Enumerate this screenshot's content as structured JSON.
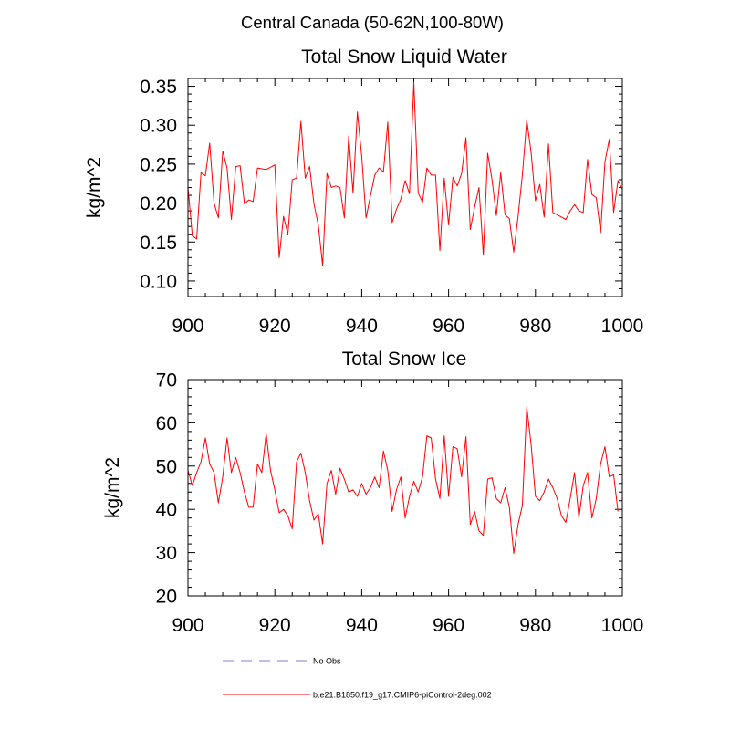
{
  "figure": {
    "title": "Central Canada (50-62N,100-80W)"
  },
  "legend": {
    "placement": "bottom",
    "entries": [
      {
        "label": "No Obs",
        "color": "#9999dd",
        "style": "dashed"
      },
      {
        "label": "b.e21.B1850.f19_g17.CMIP6-piControl-2deg.002",
        "color": "#ff0000",
        "style": "solid"
      }
    ]
  },
  "chart_data": [
    {
      "type": "line",
      "title": "Total Snow Liquid Water",
      "xlabel": "",
      "ylabel": "kg/m^2",
      "xlim": [
        900,
        1000
      ],
      "ylim": [
        0.08,
        0.36
      ],
      "xticks": [
        "900",
        "920",
        "940",
        "960",
        "980",
        "1000"
      ],
      "yticks": [
        "0.10",
        "0.15",
        "0.20",
        "0.25",
        "0.30",
        "0.35"
      ],
      "x_start": 900,
      "x_step": 1,
      "series": [
        {
          "name": "b.e21.B1850.f19_g17.CMIP6-piControl-2deg.002",
          "color": "#ff0000",
          "values": [
            0.22,
            0.158,
            0.154,
            0.239,
            0.235,
            0.277,
            0.2,
            0.181,
            0.267,
            0.245,
            0.179,
            0.247,
            0.248,
            0.199,
            0.204,
            0.202,
            0.245,
            0.244,
            0.243,
            0.246,
            0.249,
            0.13,
            0.183,
            0.16,
            0.23,
            0.232,
            0.305,
            0.232,
            0.247,
            0.199,
            0.172,
            0.12,
            0.238,
            0.22,
            0.222,
            0.22,
            0.181,
            0.286,
            0.213,
            0.317,
            0.26,
            0.181,
            0.209,
            0.236,
            0.245,
            0.24,
            0.304,
            0.175,
            0.192,
            0.205,
            0.229,
            0.212,
            0.355,
            0.213,
            0.201,
            0.245,
            0.236,
            0.236,
            0.139,
            0.232,
            0.172,
            0.233,
            0.222,
            0.238,
            0.284,
            0.166,
            0.195,
            0.22,
            0.133,
            0.264,
            0.23,
            0.184,
            0.239,
            0.185,
            0.18,
            0.137,
            0.183,
            0.237,
            0.307,
            0.265,
            0.203,
            0.224,
            0.182,
            0.276,
            0.188,
            0.185,
            0.182,
            0.179,
            0.19,
            0.198,
            0.19,
            0.188,
            0.256,
            0.211,
            0.207,
            0.162,
            0.253,
            0.282,
            0.188,
            0.229,
            0.218
          ]
        }
      ]
    },
    {
      "type": "line",
      "title": "Total Snow Ice",
      "xlabel": "",
      "ylabel": "kg/m^2",
      "xlim": [
        900,
        1000
      ],
      "ylim": [
        20,
        70
      ],
      "xticks": [
        "900",
        "920",
        "940",
        "960",
        "980",
        "1000"
      ],
      "yticks": [
        "20",
        "30",
        "40",
        "50",
        "60",
        "70"
      ],
      "x_start": 900,
      "x_step": 1,
      "series": [
        {
          "name": "b.e21.B1850.f19_g17.CMIP6-piControl-2deg.002",
          "color": "#ff0000",
          "values": [
            49,
            45.5,
            48.5,
            51,
            56.5,
            50.5,
            48.5,
            41.5,
            47.5,
            56.5,
            48.5,
            52,
            48.5,
            44,
            40.5,
            40.5,
            50.5,
            48.5,
            57.5,
            49,
            44.5,
            39.2,
            40,
            38.5,
            35.5,
            51,
            53,
            48.5,
            42,
            37.5,
            39,
            32,
            46,
            49,
            43.5,
            49.5,
            47,
            44,
            44.5,
            43,
            46,
            43.5,
            45,
            47.5,
            45,
            53.5,
            49,
            39.5,
            44.5,
            47.5,
            38,
            43,
            46.5,
            44,
            47.5,
            57,
            56.5,
            47,
            42.5,
            57,
            43,
            54.5,
            54,
            47.5,
            56.8,
            36.5,
            39.5,
            35,
            34,
            47,
            47.3,
            42.5,
            41.5,
            45,
            40.5,
            29.8,
            36.5,
            41,
            63.7,
            55,
            43,
            42,
            44,
            47,
            45,
            42.5,
            38.5,
            37,
            42.5,
            48.5,
            38,
            45.5,
            48.5,
            38,
            42.5,
            50.5,
            54.5,
            47.5,
            48,
            39.5
          ]
        }
      ]
    }
  ]
}
